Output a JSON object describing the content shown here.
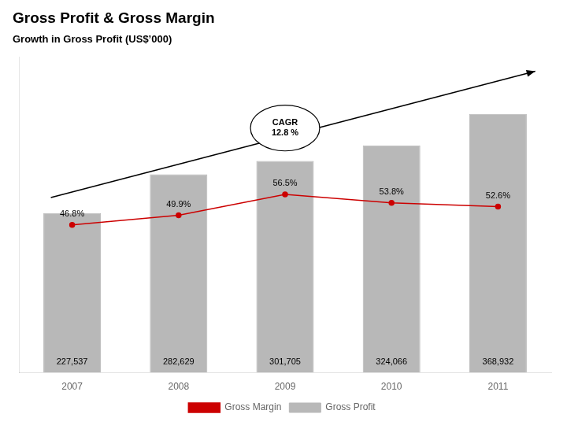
{
  "chart_data": {
    "type": "bar",
    "title": "Gross Profit & Gross Margin",
    "subtitle": "Growth in Gross Profit (US$’000)",
    "categories": [
      "2007",
      "2008",
      "2009",
      "2010",
      "2011"
    ],
    "series": [
      {
        "name": "Gross Profit",
        "type": "bar",
        "color": "#b8b8b8",
        "values": [
          227537,
          282629,
          301705,
          324066,
          368932
        ],
        "value_labels": [
          "227,537",
          "282,629",
          "301,705",
          "324,066",
          "368,932"
        ]
      },
      {
        "name": "Gross Margin",
        "type": "line",
        "color": "#cc0000",
        "axis": "y2",
        "marker": "circle",
        "values": [
          46.8,
          49.9,
          56.5,
          53.8,
          52.6
        ],
        "value_labels": [
          "46.8%",
          "49.9%",
          "56.5%",
          "53.8%",
          "52.6%"
        ]
      }
    ],
    "ylim": [
      0,
      450000
    ],
    "y2lim": [
      0,
      100
    ],
    "tick_labels": "x",
    "grid": false,
    "data_labels": true,
    "legend": "bottom",
    "annotations": [
      "CAGR\n12.8 %"
    ]
  }
}
